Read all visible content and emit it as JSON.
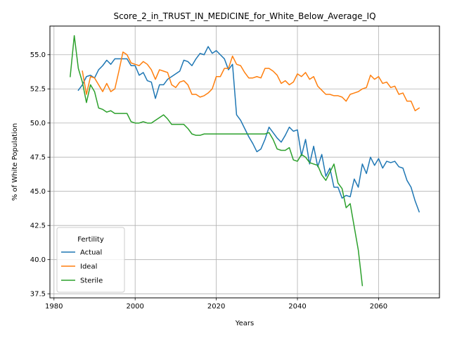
{
  "chart_data": {
    "type": "line",
    "title": "Score_2_in_TRUST_IN_MEDICINE_for_White_Below_Average_IQ",
    "xlabel": "Years",
    "ylabel": "% of White Population",
    "xlim": [
      1979,
      2075
    ],
    "ylim": [
      37.2,
      57.1
    ],
    "xticks": [
      1980,
      2000,
      2020,
      2040,
      2060
    ],
    "yticks": [
      37.5,
      40.0,
      42.5,
      45.0,
      47.5,
      50.0,
      52.5,
      55.0
    ],
    "grid": true,
    "legend": {
      "title": "Fertility",
      "placement": "lower-left"
    },
    "series": [
      {
        "name": "Actual",
        "color": "#1f77b4",
        "x": [
          1986,
          1987,
          1988,
          1989,
          1990,
          1991,
          1992,
          1993,
          1994,
          1995,
          1996,
          1997,
          1998,
          1999,
          2000,
          2001,
          2002,
          2003,
          2004,
          2005,
          2006,
          2007,
          2008,
          2009,
          2010,
          2011,
          2012,
          2013,
          2014,
          2015,
          2016,
          2017,
          2018,
          2019,
          2020,
          2021,
          2022,
          2023,
          2024,
          2025,
          2026,
          2027,
          2028,
          2029,
          2030,
          2031,
          2032,
          2033,
          2034,
          2035,
          2036,
          2037,
          2038,
          2039,
          2040,
          2041,
          2042,
          2043,
          2044,
          2045,
          2046,
          2047,
          2048,
          2049,
          2050,
          2051,
          2052,
          2053,
          2054,
          2055,
          2056,
          2057,
          2058,
          2059,
          2060,
          2061,
          2062,
          2063,
          2064,
          2065,
          2066,
          2067,
          2068,
          2069,
          2070
        ],
        "values": [
          52.4,
          52.8,
          53.4,
          53.5,
          53.3,
          53.9,
          54.2,
          54.6,
          54.3,
          54.7,
          54.7,
          54.7,
          54.7,
          54.2,
          54.2,
          53.5,
          53.7,
          53.1,
          53.0,
          51.8,
          52.8,
          52.8,
          53.2,
          53.4,
          53.6,
          53.8,
          54.6,
          54.5,
          54.2,
          54.7,
          55.1,
          55.0,
          55.6,
          55.1,
          55.3,
          55.0,
          54.7,
          53.9,
          54.3,
          50.6,
          50.2,
          49.6,
          49.0,
          48.5,
          47.9,
          48.1,
          48.8,
          49.7,
          49.3,
          48.9,
          48.6,
          49.1,
          49.7,
          49.4,
          49.5,
          47.6,
          48.8,
          47.0,
          48.3,
          46.8,
          47.7,
          46.1,
          46.7,
          45.3,
          45.3,
          44.5,
          44.7,
          44.6,
          45.9,
          45.3,
          47.0,
          46.3,
          47.5,
          46.9,
          47.4,
          46.7,
          47.2,
          47.1,
          47.2,
          46.8,
          46.7,
          45.8,
          45.3,
          44.3,
          43.5
        ]
      },
      {
        "name": "Ideal",
        "color": "#ff7f0e",
        "x": [
          1987,
          1988,
          1989,
          1990,
          1991,
          1992,
          1993,
          1994,
          1995,
          1996,
          1997,
          1998,
          1999,
          2000,
          2001,
          2002,
          2003,
          2004,
          2005,
          2006,
          2007,
          2008,
          2009,
          2010,
          2011,
          2012,
          2013,
          2014,
          2015,
          2016,
          2017,
          2018,
          2019,
          2020,
          2021,
          2022,
          2023,
          2024,
          2025,
          2026,
          2027,
          2028,
          2029,
          2030,
          2031,
          2032,
          2033,
          2034,
          2035,
          2036,
          2037,
          2038,
          2039,
          2040,
          2041,
          2042,
          2043,
          2044,
          2045,
          2046,
          2047,
          2048,
          2049,
          2050,
          2051,
          2052,
          2053,
          2054,
          2055,
          2056,
          2057,
          2058,
          2059,
          2060,
          2061,
          2062,
          2063,
          2064,
          2065,
          2066,
          2067,
          2068,
          2069,
          2070
        ],
        "values": [
          53.8,
          52.1,
          53.4,
          53.3,
          52.8,
          52.3,
          52.9,
          52.3,
          52.5,
          53.8,
          55.2,
          55.0,
          54.4,
          54.3,
          54.2,
          54.5,
          54.3,
          53.9,
          53.2,
          53.9,
          53.8,
          53.7,
          52.8,
          52.6,
          53.0,
          53.1,
          52.8,
          52.1,
          52.1,
          51.9,
          52.0,
          52.2,
          52.5,
          53.4,
          53.4,
          54.0,
          54.0,
          54.9,
          54.3,
          54.2,
          53.7,
          53.3,
          53.3,
          53.4,
          53.3,
          54.0,
          54.0,
          53.8,
          53.5,
          52.9,
          53.1,
          52.8,
          53.0,
          53.6,
          53.4,
          53.7,
          53.2,
          53.4,
          52.7,
          52.4,
          52.1,
          52.1,
          52.0,
          52.0,
          51.9,
          51.6,
          52.1,
          52.2,
          52.3,
          52.5,
          52.6,
          53.5,
          53.2,
          53.4,
          52.9,
          53.0,
          52.6,
          52.7,
          52.1,
          52.2,
          51.6,
          51.6,
          50.9,
          51.1
        ]
      },
      {
        "name": "Sterile",
        "color": "#2ca02c",
        "x": [
          1984,
          1985,
          1986,
          1987,
          1988,
          1989,
          1990,
          1991,
          1992,
          1993,
          1994,
          1995,
          1996,
          1997,
          1998,
          1999,
          2000,
          2001,
          2002,
          2003,
          2004,
          2005,
          2006,
          2007,
          2008,
          2009,
          2010,
          2011,
          2012,
          2013,
          2014,
          2015,
          2016,
          2017,
          2018,
          2019,
          2020,
          2021,
          2022,
          2023,
          2024,
          2025,
          2026,
          2027,
          2028,
          2029,
          2030,
          2031,
          2032,
          2033,
          2034,
          2035,
          2036,
          2037,
          2038,
          2039,
          2040,
          2041,
          2042,
          2043,
          2044,
          2045,
          2046,
          2047,
          2048,
          2049,
          2050,
          2051,
          2052,
          2053,
          2054,
          2055,
          2056
        ],
        "values": [
          53.4,
          56.4,
          54.0,
          53.0,
          51.5,
          52.8,
          52.3,
          51.1,
          51.0,
          50.8,
          50.9,
          50.7,
          50.7,
          50.7,
          50.7,
          50.1,
          50.0,
          50.0,
          50.1,
          50.0,
          50.0,
          50.2,
          50.4,
          50.6,
          50.3,
          49.9,
          49.9,
          49.9,
          49.9,
          49.6,
          49.2,
          49.1,
          49.1,
          49.2,
          49.2,
          49.2,
          49.2,
          49.2,
          49.2,
          49.2,
          49.2,
          49.2,
          49.2,
          49.2,
          49.2,
          49.2,
          49.2,
          49.2,
          49.2,
          49.3,
          48.8,
          48.1,
          48.0,
          48.0,
          48.2,
          47.3,
          47.2,
          47.7,
          47.5,
          47.1,
          47.0,
          46.9,
          46.2,
          45.8,
          46.4,
          47.0,
          45.6,
          45.2,
          43.8,
          44.1,
          42.4,
          40.7,
          38.1
        ]
      }
    ]
  }
}
